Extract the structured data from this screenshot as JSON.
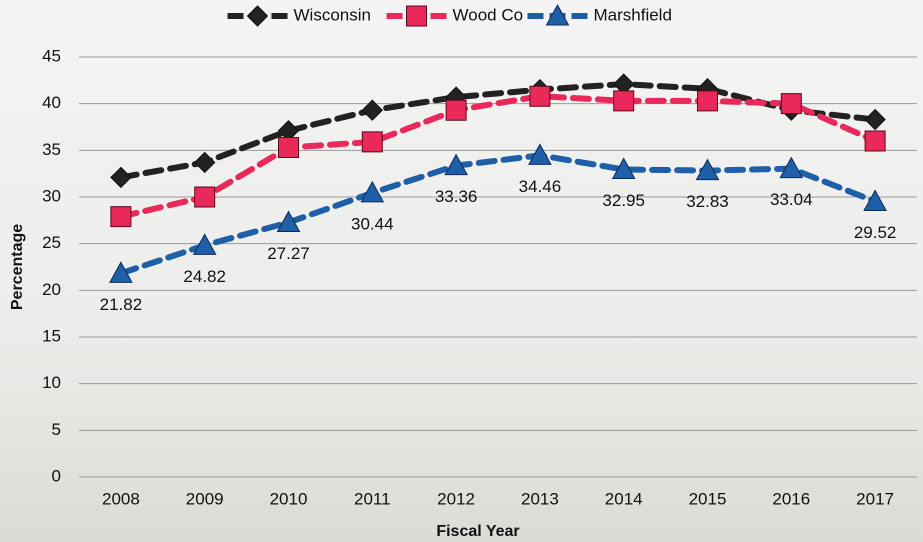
{
  "chart_data": {
    "type": "line",
    "x_label": "Fiscal Year",
    "y_label": "Percentage",
    "categories": [
      "2008",
      "2009",
      "2010",
      "2011",
      "2012",
      "2013",
      "2014",
      "2015",
      "2016",
      "2017"
    ],
    "series": [
      {
        "name": "Wisconsin",
        "color": "#222222",
        "marker": "diamond",
        "values": [
          32.1,
          33.7,
          37.1,
          39.3,
          40.7,
          41.5,
          42.1,
          41.6,
          39.3,
          38.3
        ]
      },
      {
        "name": "Wood Co",
        "color": "#e8295a",
        "marker": "square",
        "values": [
          27.9,
          30.0,
          35.3,
          35.9,
          39.3,
          40.8,
          40.3,
          40.3,
          40.0,
          36.0
        ]
      },
      {
        "name": "Marshfield",
        "color": "#1f5fa8",
        "marker": "triangle",
        "values": [
          21.82,
          24.82,
          27.27,
          30.44,
          33.36,
          34.46,
          32.95,
          32.83,
          33.04,
          29.52
        ],
        "show_labels": true
      }
    ],
    "ylim": [
      0,
      45
    ],
    "yticks": [
      0,
      5,
      10,
      15,
      20,
      25,
      30,
      35,
      40,
      45
    ],
    "grid": true,
    "legend": "top"
  }
}
